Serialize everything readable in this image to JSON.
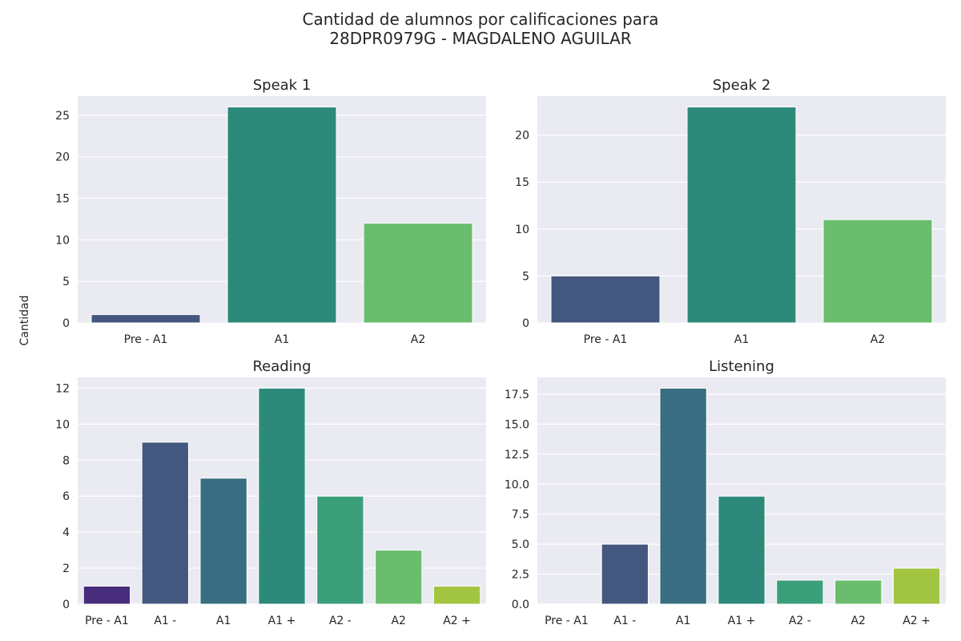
{
  "figure": {
    "title_line1": "Cantidad de alumnos por calificaciones para",
    "title_line2": "28DPR0979G - MAGDALENO AGUILAR",
    "ylabel": "Cantidad",
    "colors": {
      "plot_background": "#eaeaf2",
      "grid": "#ffffff",
      "text": "#262626",
      "palette": [
        "#472d7b",
        "#44577e",
        "#396d81",
        "#2d8a7b",
        "#3a9f7a",
        "#6abd6c",
        "#a2c641"
      ]
    }
  },
  "chart_data": [
    {
      "type": "bar",
      "title": "Speak 1",
      "categories": [
        "Pre - A1",
        "A1",
        "A2"
      ],
      "values": [
        1,
        26,
        12
      ],
      "colors": [
        "#44577e",
        "#2d8a7b",
        "#6abd6c"
      ],
      "ylim": [
        0,
        27.3
      ],
      "yticks": [
        0,
        5,
        10,
        15,
        20,
        25
      ],
      "ytick_labels": [
        "0",
        "5",
        "10",
        "15",
        "20",
        "25"
      ],
      "grid": true
    },
    {
      "type": "bar",
      "title": "Speak 2",
      "categories": [
        "Pre - A1",
        "A1",
        "A2"
      ],
      "values": [
        5,
        23,
        11
      ],
      "colors": [
        "#44577e",
        "#2d8a7b",
        "#6abd6c"
      ],
      "ylim": [
        0,
        24.15
      ],
      "yticks": [
        0,
        5,
        10,
        15,
        20
      ],
      "ytick_labels": [
        "0",
        "5",
        "10",
        "15",
        "20"
      ],
      "grid": true
    },
    {
      "type": "bar",
      "title": "Reading",
      "categories": [
        "Pre - A1",
        "A1 -",
        "A1",
        "A1 +",
        "A2 -",
        "A2",
        "A2 +"
      ],
      "values": [
        1,
        9,
        7,
        12,
        6,
        3,
        1
      ],
      "colors": [
        "#472d7b",
        "#44577e",
        "#396d81",
        "#2d8a7b",
        "#3a9f7a",
        "#6abd6c",
        "#a2c641"
      ],
      "ylim": [
        0,
        12.6
      ],
      "yticks": [
        0,
        2,
        4,
        6,
        8,
        10,
        12
      ],
      "ytick_labels": [
        "0",
        "2",
        "4",
        "6",
        "8",
        "10",
        "12"
      ],
      "grid": true
    },
    {
      "type": "bar",
      "title": "Listening",
      "categories": [
        "Pre - A1",
        "A1 -",
        "A1",
        "A1 +",
        "A2 -",
        "A2",
        "A2 +"
      ],
      "values": [
        0,
        5,
        18,
        9,
        2,
        2,
        3
      ],
      "colors": [
        "#472d7b",
        "#44577e",
        "#396d81",
        "#2d8a7b",
        "#3a9f7a",
        "#6abd6c",
        "#a2c641"
      ],
      "ylim": [
        0,
        18.9
      ],
      "yticks": [
        0,
        2.5,
        5,
        7.5,
        10,
        12.5,
        15,
        17.5
      ],
      "ytick_labels": [
        "0.0",
        "2.5",
        "5.0",
        "7.5",
        "10.0",
        "12.5",
        "15.0",
        "17.5"
      ],
      "grid": true
    }
  ]
}
